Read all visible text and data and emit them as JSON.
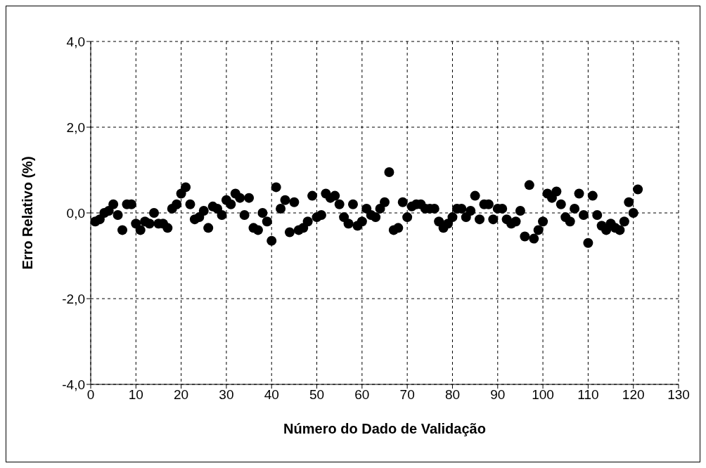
{
  "chart_data": {
    "type": "scatter",
    "xlabel": "Número do Dado de Validação",
    "ylabel": "Erro Relativo (%)",
    "x": [
      1,
      2,
      3,
      4,
      5,
      6,
      7,
      8,
      9,
      10,
      11,
      12,
      13,
      14,
      15,
      16,
      17,
      18,
      19,
      20,
      21,
      22,
      23,
      24,
      25,
      26,
      27,
      28,
      29,
      30,
      31,
      32,
      33,
      34,
      35,
      36,
      37,
      38,
      39,
      40,
      41,
      42,
      43,
      44,
      45,
      46,
      47,
      48,
      49,
      50,
      51,
      52,
      53,
      54,
      55,
      56,
      57,
      58,
      59,
      60,
      61,
      62,
      63,
      64,
      65,
      66,
      67,
      68,
      69,
      70,
      71,
      72,
      73,
      74,
      75,
      76,
      77,
      78,
      79,
      80,
      81,
      82,
      83,
      84,
      85,
      86,
      87,
      88,
      89,
      90,
      91,
      92,
      93,
      94,
      95,
      96,
      97,
      98,
      99,
      100,
      101,
      102,
      103,
      104,
      105,
      106,
      107,
      108,
      109,
      110,
      111,
      112,
      113,
      114,
      115,
      116,
      117,
      118,
      119,
      120,
      121
    ],
    "series": [
      {
        "color": "#000000",
        "values": [
          -0.2,
          -0.15,
          0.0,
          0.05,
          0.2,
          -0.05,
          -0.4,
          0.2,
          0.2,
          -0.25,
          -0.4,
          -0.2,
          -0.25,
          0.0,
          -0.25,
          -0.25,
          -0.35,
          0.1,
          0.2,
          0.45,
          0.6,
          0.2,
          -0.15,
          -0.1,
          0.05,
          -0.35,
          0.15,
          0.1,
          -0.05,
          0.3,
          0.2,
          0.45,
          0.35,
          -0.05,
          0.35,
          -0.35,
          -0.4,
          0.0,
          -0.2,
          -0.65,
          0.6,
          0.1,
          0.3,
          -0.45,
          0.25,
          -0.4,
          -0.35,
          -0.2,
          0.4,
          -0.1,
          -0.05,
          0.45,
          0.35,
          0.4,
          0.2,
          -0.1,
          -0.25,
          0.2,
          -0.3,
          -0.2,
          0.1,
          -0.05,
          -0.1,
          0.1,
          0.25,
          0.95,
          -0.4,
          -0.35,
          0.25,
          -0.1,
          0.15,
          0.2,
          0.2,
          0.1,
          0.1,
          0.1,
          -0.2,
          -0.35,
          -0.25,
          -0.1,
          0.1,
          0.1,
          -0.1,
          0.05,
          0.4,
          -0.15,
          0.2,
          0.2,
          -0.15,
          0.1,
          0.1,
          -0.15,
          -0.25,
          -0.2,
          0.05,
          -0.55,
          0.65,
          -0.6,
          -0.4,
          -0.2,
          0.45,
          0.35,
          0.5,
          0.2,
          -0.1,
          -0.2,
          0.1,
          0.45,
          -0.05,
          -0.7,
          0.4,
          -0.05,
          -0.3,
          -0.4,
          -0.25,
          -0.35,
          -0.4,
          -0.2,
          0.25,
          0.0,
          0.55
        ]
      }
    ],
    "xlim": [
      0,
      130
    ],
    "xticks": [
      0,
      10,
      20,
      30,
      40,
      50,
      60,
      70,
      80,
      90,
      100,
      110,
      120,
      130
    ],
    "ylim": [
      -4,
      4
    ],
    "yticks": [
      {
        "value": -4,
        "label": "-4,0"
      },
      {
        "value": -2,
        "label": "-2,0"
      },
      {
        "value": 0,
        "label": "0,0"
      },
      {
        "value": 2,
        "label": "2,0"
      },
      {
        "value": 4,
        "label": "4,0"
      }
    ],
    "grid": true,
    "marker": "circle",
    "legend": false
  }
}
